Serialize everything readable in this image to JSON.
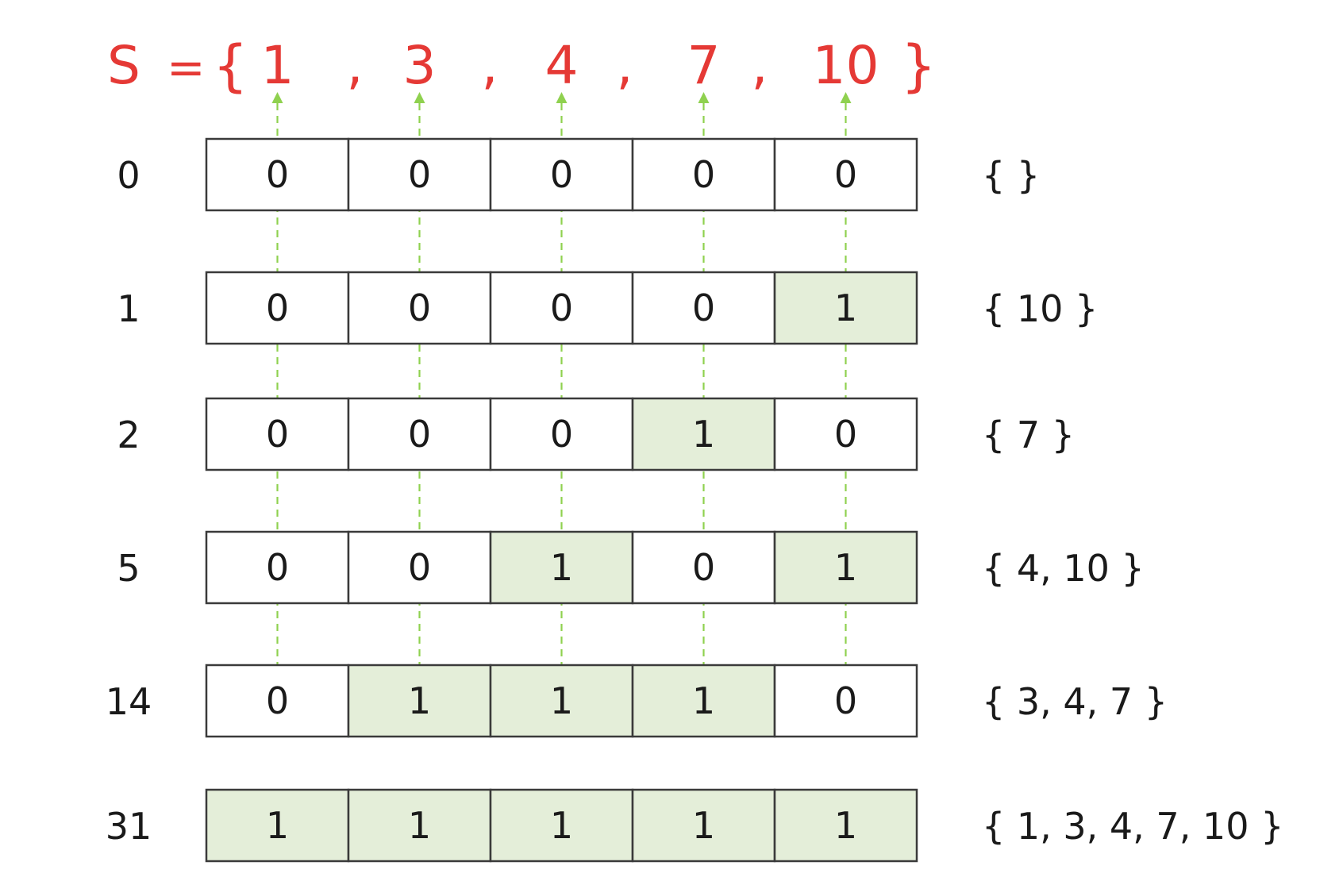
{
  "set": {
    "name": "S",
    "equals": "=",
    "open_brace": "{",
    "close_brace": "}",
    "separator": ",",
    "elements": [
      "1",
      "3",
      "4",
      "7",
      "10"
    ]
  },
  "rows": [
    {
      "label": "0",
      "bits": [
        0,
        0,
        0,
        0,
        0
      ],
      "subset": "{ }"
    },
    {
      "label": "1",
      "bits": [
        0,
        0,
        0,
        0,
        1
      ],
      "subset": "{ 10 }"
    },
    {
      "label": "2",
      "bits": [
        0,
        0,
        0,
        1,
        0
      ],
      "subset": "{ 7 }"
    },
    {
      "label": "5",
      "bits": [
        0,
        0,
        1,
        0,
        1
      ],
      "subset": "{ 4, 10 }"
    },
    {
      "label": "14",
      "bits": [
        0,
        1,
        1,
        1,
        0
      ],
      "subset": "{ 3, 4, 7 }"
    },
    {
      "label": "31",
      "bits": [
        1,
        1,
        1,
        1,
        1
      ],
      "subset": "{ 1, 3, 4, 7, 10 }"
    }
  ],
  "colors": {
    "set_text": "#e53935",
    "highlight_fill": "#e4eed9",
    "plain_fill": "#ffffff",
    "cell_border": "#3a3a3a",
    "guide_line": "#8fd14f"
  }
}
